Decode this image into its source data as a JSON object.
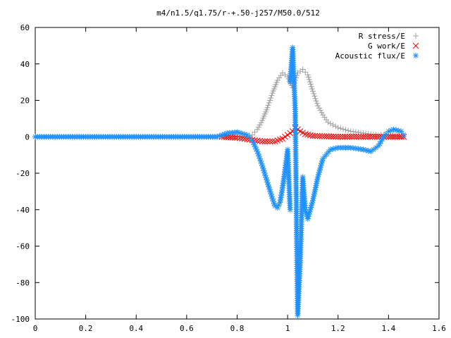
{
  "chart_data": {
    "type": "scatter",
    "title": "m4/n1.5/q1.75/r-+.50-j257/M50.0/512",
    "xlabel": "",
    "ylabel": "",
    "xlim": [
      0,
      1.6
    ],
    "ylim": [
      -100,
      60
    ],
    "x_ticks": [
      0,
      0.2,
      0.4,
      0.6,
      0.8,
      1,
      1.2,
      1.4,
      1.6
    ],
    "x_tick_labels": [
      "0",
      "0.2",
      "0.4",
      "0.6",
      "0.8",
      "1",
      "1.2",
      "1.4",
      "1.6"
    ],
    "y_ticks": [
      -100,
      -80,
      -60,
      -40,
      -20,
      0,
      20,
      40,
      60
    ],
    "y_tick_labels": [
      "-100",
      "-80",
      "-60",
      "-40",
      "-20",
      "0",
      "20",
      "40",
      "60"
    ],
    "grid": false,
    "legend_position": "top-right",
    "series": [
      {
        "name": "R stress/E",
        "marker": "plus",
        "color": "#a0a0a0",
        "points": [
          [
            0.0,
            0
          ],
          [
            0.2,
            0
          ],
          [
            0.4,
            0
          ],
          [
            0.6,
            0
          ],
          [
            0.8,
            0
          ],
          [
            0.84,
            0
          ],
          [
            0.86,
            1
          ],
          [
            0.88,
            4
          ],
          [
            0.9,
            9
          ],
          [
            0.92,
            16
          ],
          [
            0.94,
            24
          ],
          [
            0.96,
            31
          ],
          [
            0.98,
            35
          ],
          [
            1.0,
            33
          ],
          [
            1.02,
            27
          ],
          [
            1.04,
            35
          ],
          [
            1.06,
            37
          ],
          [
            1.08,
            34
          ],
          [
            1.1,
            25
          ],
          [
            1.12,
            17
          ],
          [
            1.14,
            12
          ],
          [
            1.16,
            8
          ],
          [
            1.2,
            5
          ],
          [
            1.25,
            3
          ],
          [
            1.3,
            2
          ],
          [
            1.35,
            1
          ],
          [
            1.4,
            1
          ],
          [
            1.46,
            0
          ]
        ]
      },
      {
        "name": "G work/E",
        "marker": "cross",
        "color": "#ff0000",
        "points": [
          [
            0.74,
            0
          ],
          [
            0.8,
            -0.5
          ],
          [
            0.85,
            -1.5
          ],
          [
            0.9,
            -2.5
          ],
          [
            0.95,
            -2.5
          ],
          [
            0.98,
            -1
          ],
          [
            1.0,
            1
          ],
          [
            1.02,
            3
          ],
          [
            1.03,
            5
          ],
          [
            1.05,
            3
          ],
          [
            1.07,
            1.5
          ],
          [
            1.1,
            0.5
          ],
          [
            1.2,
            0
          ],
          [
            1.3,
            0
          ],
          [
            1.4,
            0
          ],
          [
            1.46,
            0
          ]
        ]
      },
      {
        "name": "Acoustic flux/E",
        "marker": "asterisk",
        "color": "#1e90ff",
        "points": [
          [
            0.0,
            0
          ],
          [
            0.2,
            0
          ],
          [
            0.4,
            0
          ],
          [
            0.6,
            0
          ],
          [
            0.72,
            0
          ],
          [
            0.76,
            2
          ],
          [
            0.8,
            2.5
          ],
          [
            0.84,
            1
          ],
          [
            0.86,
            -2
          ],
          [
            0.88,
            -8
          ],
          [
            0.9,
            -16
          ],
          [
            0.92,
            -25
          ],
          [
            0.94,
            -34
          ],
          [
            0.95,
            -38
          ],
          [
            0.96,
            -39
          ],
          [
            0.97,
            -36
          ],
          [
            0.98,
            -28
          ],
          [
            0.99,
            -18
          ],
          [
            1.0,
            -7
          ],
          [
            1.01,
            -40
          ],
          [
            1.01,
            30
          ],
          [
            1.02,
            49
          ],
          [
            1.03,
            15
          ],
          [
            1.04,
            -98
          ],
          [
            1.05,
            -68
          ],
          [
            1.06,
            -22
          ],
          [
            1.07,
            -40
          ],
          [
            1.08,
            -45
          ],
          [
            1.1,
            -35
          ],
          [
            1.12,
            -22
          ],
          [
            1.14,
            -12
          ],
          [
            1.17,
            -7
          ],
          [
            1.2,
            -6
          ],
          [
            1.25,
            -6
          ],
          [
            1.3,
            -7
          ],
          [
            1.33,
            -8
          ],
          [
            1.36,
            -5
          ],
          [
            1.38,
            0
          ],
          [
            1.4,
            3
          ],
          [
            1.42,
            4
          ],
          [
            1.45,
            3
          ],
          [
            1.46,
            1
          ]
        ]
      }
    ]
  }
}
